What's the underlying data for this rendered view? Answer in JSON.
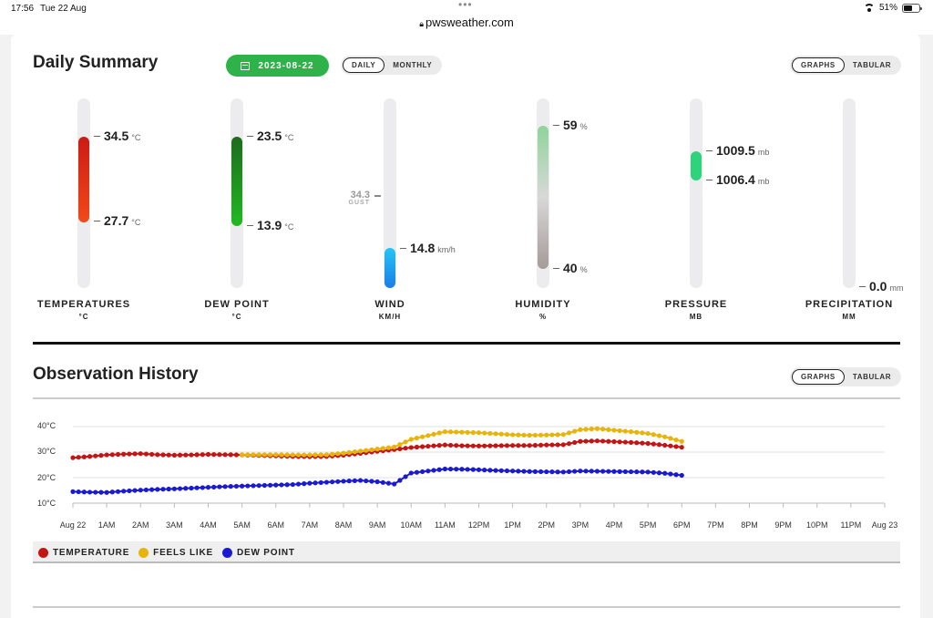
{
  "status_bar": {
    "time": "17:56",
    "date": "Tue 22 Aug",
    "url": "pwsweather.com",
    "battery": "51%"
  },
  "summary": {
    "title": "Daily Summary",
    "date": "2023-08-22",
    "period_options": [
      "DAILY",
      "MONTHLY"
    ],
    "view_options": [
      "GRAPHS",
      "TABULAR"
    ],
    "gauges": {
      "temperature": {
        "label": "TEMPERATURES",
        "unit_label": "°C",
        "high": "34.5",
        "high_unit": "°C",
        "low": "27.7",
        "low_unit": "°C",
        "color_top": "#cc1b14",
        "color_bottom": "#f04a1a"
      },
      "dewpoint": {
        "label": "DEW POINT",
        "unit_label": "°C",
        "high": "23.5",
        "high_unit": "°C",
        "low": "13.9",
        "low_unit": "°C",
        "color_top": "#1e6b1e",
        "color_bottom": "#22b922"
      },
      "wind": {
        "label": "WIND",
        "unit_label": "KM/H",
        "gust": "34.3",
        "gust_label": "GUST",
        "value": "14.8",
        "value_unit": "km/h",
        "color_top": "#25c5f5",
        "color_bottom": "#1a7de8"
      },
      "humidity": {
        "label": "HUMIDITY",
        "unit_label": "%",
        "high": "59",
        "high_unit": "%",
        "low": "40",
        "low_unit": "%",
        "color_top": "#8fd49a",
        "color_bottom": "#a59a98"
      },
      "pressure": {
        "label": "PRESSURE",
        "unit_label": "MB",
        "high": "1009.5",
        "high_unit": "mb",
        "low": "1006.4",
        "low_unit": "mb",
        "color": "#2fd37c"
      },
      "precipitation": {
        "label": "PRECIPITATION",
        "unit_label": "MM",
        "value": "0.0",
        "value_unit": "mm"
      }
    }
  },
  "history": {
    "title": "Observation History",
    "view_options": [
      "GRAPHS",
      "TABULAR"
    ],
    "legend": [
      {
        "name": "TEMPERATURE",
        "color": "#c41414"
      },
      {
        "name": "FEELS LIKE",
        "color": "#e8b40c"
      },
      {
        "name": "DEW POINT",
        "color": "#1a1ad2"
      }
    ]
  },
  "chart_data": {
    "type": "line",
    "y_ticks": [
      "40°C",
      "30°C",
      "20°C",
      "10°C"
    ],
    "ylim": [
      10,
      40
    ],
    "x_ticks": [
      "Aug 22",
      "1AM",
      "2AM",
      "3AM",
      "4AM",
      "5AM",
      "6AM",
      "7AM",
      "8AM",
      "9AM",
      "10AM",
      "11AM",
      "12PM",
      "1PM",
      "2PM",
      "3PM",
      "4PM",
      "5PM",
      "6PM",
      "7PM",
      "8PM",
      "9PM",
      "10PM",
      "11PM",
      "Aug 23"
    ],
    "xlim_hours": [
      0,
      24
    ],
    "series": [
      {
        "name": "TEMPERATURE",
        "color": "#c41414",
        "points": [
          [
            0,
            27.8
          ],
          [
            0.5,
            28.3
          ],
          [
            1,
            28.9
          ],
          [
            1.5,
            29.2
          ],
          [
            2,
            29.4
          ],
          [
            2.5,
            29.0
          ],
          [
            3,
            28.8
          ],
          [
            3.5,
            28.9
          ],
          [
            4,
            29.1
          ],
          [
            4.5,
            29.0
          ],
          [
            5,
            28.9
          ],
          [
            5.5,
            28.7
          ],
          [
            6,
            28.5
          ],
          [
            6.5,
            28.3
          ],
          [
            7,
            28.2
          ],
          [
            7.5,
            28.3
          ],
          [
            8,
            28.8
          ],
          [
            8.5,
            29.5
          ],
          [
            9,
            30.3
          ],
          [
            9.5,
            31.0
          ],
          [
            10,
            31.8
          ],
          [
            10.5,
            32.3
          ],
          [
            11,
            32.8
          ],
          [
            11.5,
            32.5
          ],
          [
            12,
            32.4
          ],
          [
            12.5,
            32.5
          ],
          [
            13,
            32.6
          ],
          [
            13.5,
            32.6
          ],
          [
            14,
            32.8
          ],
          [
            14.5,
            32.9
          ],
          [
            15,
            34.2
          ],
          [
            15.5,
            34.4
          ],
          [
            16,
            34.1
          ],
          [
            16.5,
            33.8
          ],
          [
            17,
            33.4
          ],
          [
            17.5,
            32.7
          ],
          [
            18,
            31.9
          ]
        ]
      },
      {
        "name": "FEELS LIKE",
        "color": "#e8b40c",
        "points": [
          [
            5,
            29.0
          ],
          [
            5.5,
            29.0
          ],
          [
            6,
            29.0
          ],
          [
            6.5,
            28.9
          ],
          [
            7,
            28.9
          ],
          [
            7.5,
            29.0
          ],
          [
            8,
            29.6
          ],
          [
            8.5,
            30.4
          ],
          [
            9,
            31.2
          ],
          [
            9.5,
            32.0
          ],
          [
            10,
            35.0
          ],
          [
            10.5,
            36.5
          ],
          [
            11,
            38.0
          ],
          [
            11.5,
            37.8
          ],
          [
            12,
            37.6
          ],
          [
            12.5,
            37.2
          ],
          [
            13,
            36.8
          ],
          [
            13.5,
            36.6
          ],
          [
            14,
            36.7
          ],
          [
            14.5,
            36.9
          ],
          [
            15,
            38.8
          ],
          [
            15.5,
            39.2
          ],
          [
            16,
            38.6
          ],
          [
            16.5,
            38.0
          ],
          [
            17,
            37.3
          ],
          [
            17.5,
            36.0
          ],
          [
            18,
            34.2
          ]
        ]
      },
      {
        "name": "DEW POINT",
        "color": "#1a1ad2",
        "points": [
          [
            0,
            14.5
          ],
          [
            0.5,
            14.3
          ],
          [
            1,
            14.2
          ],
          [
            1.5,
            14.7
          ],
          [
            2,
            15.1
          ],
          [
            2.5,
            15.4
          ],
          [
            3,
            15.6
          ],
          [
            3.5,
            15.9
          ],
          [
            4,
            16.2
          ],
          [
            4.5,
            16.5
          ],
          [
            5,
            16.7
          ],
          [
            5.5,
            16.9
          ],
          [
            6,
            17.1
          ],
          [
            6.5,
            17.3
          ],
          [
            7,
            17.8
          ],
          [
            7.5,
            18.2
          ],
          [
            8,
            18.6
          ],
          [
            8.5,
            18.9
          ],
          [
            9,
            18.4
          ],
          [
            9.5,
            17.5
          ],
          [
            10,
            21.8
          ],
          [
            10.5,
            22.6
          ],
          [
            11,
            23.4
          ],
          [
            11.5,
            23.3
          ],
          [
            12,
            23.1
          ],
          [
            12.5,
            22.8
          ],
          [
            13,
            22.6
          ],
          [
            13.5,
            22.4
          ],
          [
            14,
            22.3
          ],
          [
            14.5,
            22.2
          ],
          [
            15,
            22.6
          ],
          [
            15.5,
            22.5
          ],
          [
            16,
            22.4
          ],
          [
            16.5,
            22.3
          ],
          [
            17,
            22.2
          ],
          [
            17.5,
            21.7
          ],
          [
            18,
            20.9
          ]
        ]
      }
    ]
  }
}
